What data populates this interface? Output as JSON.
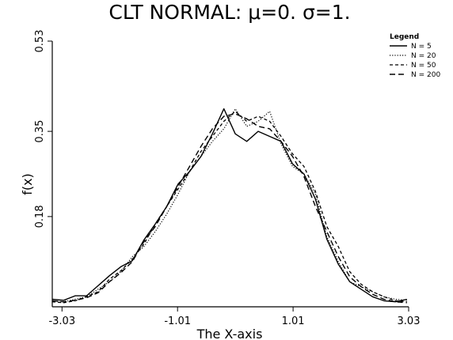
{
  "chart_data": {
    "type": "line",
    "title": "CLT NORMAL: μ=0. σ=1.",
    "xlabel": "The X-axis",
    "ylabel": "f(x)",
    "xlim": [
      -3.2,
      3.03
    ],
    "ylim": [
      0.0,
      0.53
    ],
    "xticks": [
      "-3.03",
      "-1.01",
      "1.01",
      "3.03"
    ],
    "xtick_values": [
      -3.03,
      -1.01,
      1.01,
      3.03
    ],
    "yticks": [
      "0.18",
      "0.35",
      "0.53"
    ],
    "ytick_values": [
      0.18,
      0.35,
      0.53
    ],
    "grid": false,
    "legend": {
      "title": "Legend",
      "placement": "top-right"
    },
    "x": [
      -3.2,
      -3.0,
      -2.8,
      -2.6,
      -2.4,
      -2.2,
      -2.0,
      -1.8,
      -1.6,
      -1.4,
      -1.2,
      -1.0,
      -0.8,
      -0.6,
      -0.4,
      -0.2,
      0.0,
      0.2,
      0.4,
      0.6,
      0.8,
      1.0,
      1.2,
      1.4,
      1.6,
      1.8,
      2.0,
      2.2,
      2.4,
      2.6,
      2.8,
      3.0
    ],
    "series": [
      {
        "name": "N =   5",
        "dash": "solid",
        "values": [
          0.015,
          0.013,
          0.022,
          0.022,
          0.042,
          0.062,
          0.08,
          0.092,
          0.133,
          0.165,
          0.2,
          0.245,
          0.27,
          0.3,
          0.345,
          0.395,
          0.345,
          0.33,
          0.35,
          0.34,
          0.33,
          0.285,
          0.265,
          0.215,
          0.135,
          0.085,
          0.05,
          0.035,
          0.02,
          0.012,
          0.01,
          0.015
        ]
      },
      {
        "name": "N =  20",
        "dash": "dotted",
        "values": [
          0.012,
          0.01,
          0.015,
          0.02,
          0.035,
          0.05,
          0.07,
          0.1,
          0.12,
          0.15,
          0.185,
          0.225,
          0.27,
          0.3,
          0.33,
          0.355,
          0.395,
          0.36,
          0.37,
          0.39,
          0.325,
          0.28,
          0.265,
          0.225,
          0.14,
          0.09,
          0.05,
          0.04,
          0.03,
          0.02,
          0.015,
          0.013
        ]
      },
      {
        "name": "N =  50",
        "dash": "dash",
        "values": [
          0.01,
          0.008,
          0.012,
          0.02,
          0.03,
          0.055,
          0.072,
          0.095,
          0.125,
          0.165,
          0.2,
          0.235,
          0.27,
          0.31,
          0.34,
          0.37,
          0.39,
          0.37,
          0.38,
          0.37,
          0.34,
          0.305,
          0.28,
          0.23,
          0.16,
          0.12,
          0.07,
          0.045,
          0.03,
          0.02,
          0.012,
          0.01
        ]
      },
      {
        "name": "N = 200",
        "dash": "longdash",
        "values": [
          0.012,
          0.01,
          0.013,
          0.018,
          0.028,
          0.05,
          0.068,
          0.09,
          0.13,
          0.16,
          0.2,
          0.24,
          0.28,
          0.32,
          0.355,
          0.38,
          0.385,
          0.375,
          0.36,
          0.355,
          0.33,
          0.3,
          0.26,
          0.2,
          0.15,
          0.1,
          0.06,
          0.04,
          0.025,
          0.015,
          0.01,
          0.008
        ]
      }
    ]
  }
}
